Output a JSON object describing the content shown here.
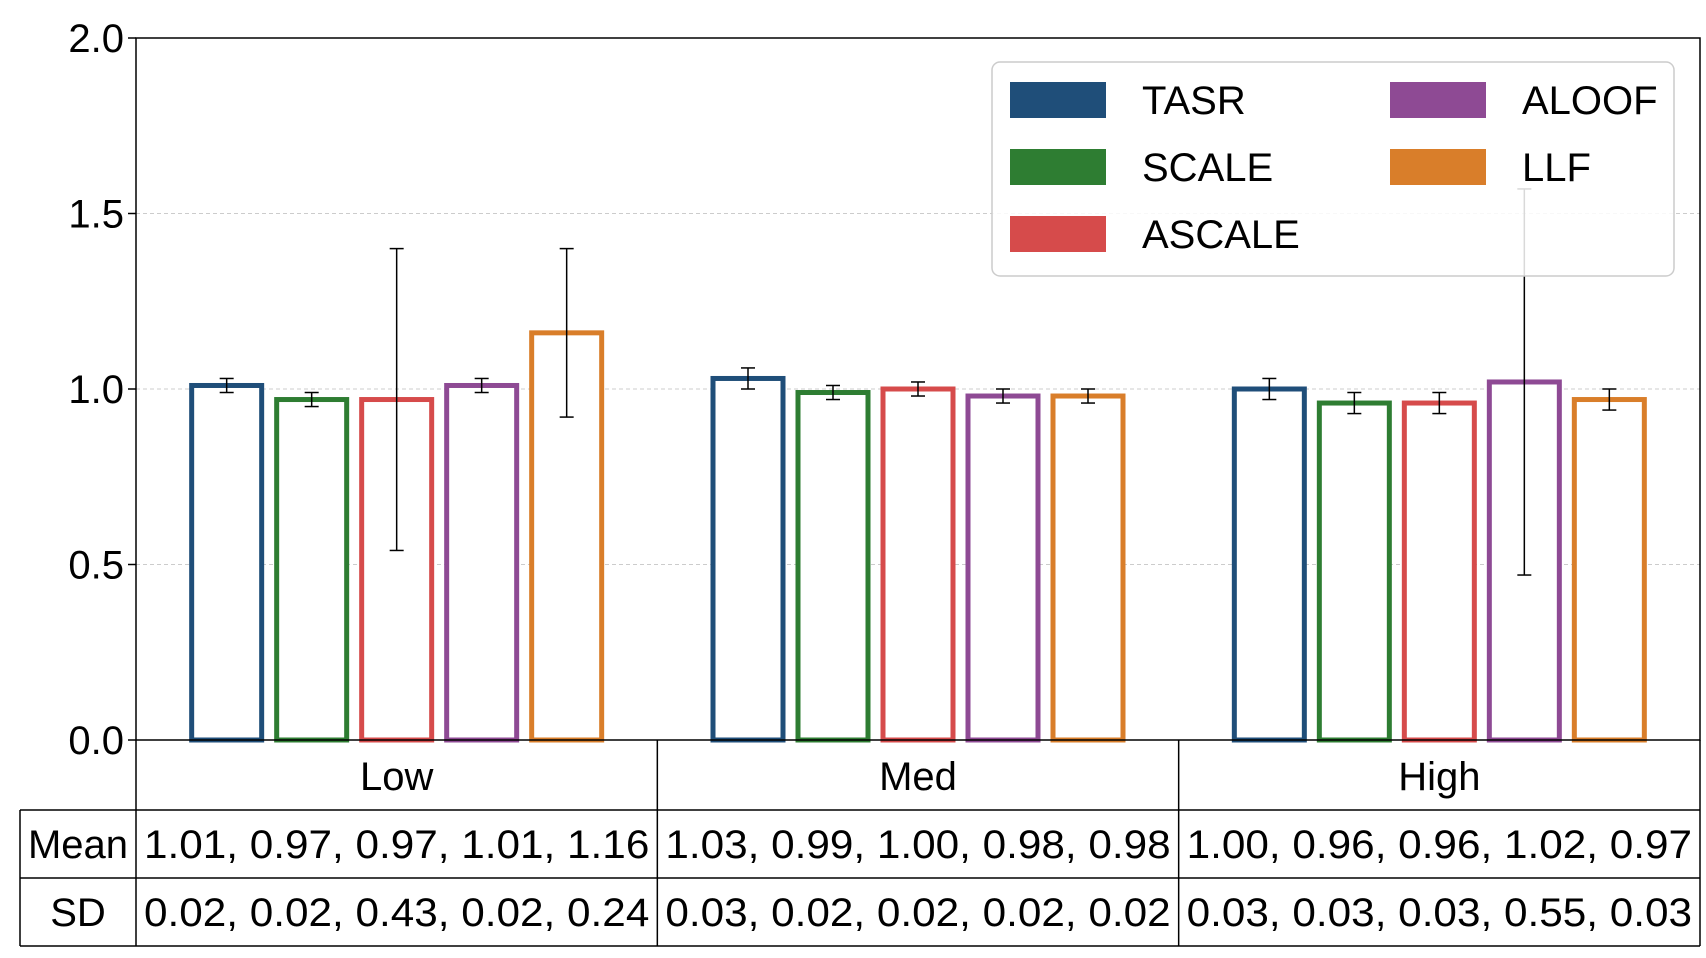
{
  "chart_data": {
    "type": "bar",
    "categories": [
      "Low",
      "Med",
      "High"
    ],
    "series": [
      {
        "name": "TASR",
        "color": "#1f4e79",
        "values": [
          1.01,
          1.03,
          1.0
        ],
        "sd": [
          0.02,
          0.03,
          0.03
        ]
      },
      {
        "name": "SCALE",
        "color": "#2e7d32",
        "values": [
          0.97,
          0.99,
          0.96
        ],
        "sd": [
          0.02,
          0.02,
          0.03
        ]
      },
      {
        "name": "ASCALE",
        "color": "#d64b4b",
        "values": [
          0.97,
          1.0,
          0.96
        ],
        "sd": [
          0.43,
          0.02,
          0.03
        ]
      },
      {
        "name": "ALOOF",
        "color": "#8e4a94",
        "values": [
          1.01,
          0.98,
          1.02
        ],
        "sd": [
          0.02,
          0.02,
          0.55
        ]
      },
      {
        "name": "LLF",
        "color": "#d97e2a",
        "values": [
          1.16,
          0.98,
          0.97
        ],
        "sd": [
          0.24,
          0.02,
          0.03
        ]
      }
    ],
    "ylim": [
      0,
      2
    ],
    "yticks": [
      "0.0",
      "0.5",
      "1.0",
      "1.5",
      "2.0"
    ],
    "ytick_values": [
      0,
      0.5,
      1.0,
      1.5,
      2.0
    ],
    "grid": true,
    "legend_position": "top-right",
    "title": "",
    "xlabel": "",
    "ylabel": ""
  },
  "table": {
    "row_labels": [
      "Mean",
      "SD"
    ],
    "rows": [
      [
        "1.01, 0.97, 0.97, 1.01, 1.16",
        "1.03, 0.99, 1.00, 0.98, 0.98",
        "1.00, 0.96, 0.96, 1.02, 0.97"
      ],
      [
        "0.02, 0.02, 0.43, 0.02, 0.24",
        "0.03, 0.02, 0.02, 0.02, 0.02",
        "0.03, 0.03, 0.03, 0.55, 0.03"
      ]
    ]
  }
}
